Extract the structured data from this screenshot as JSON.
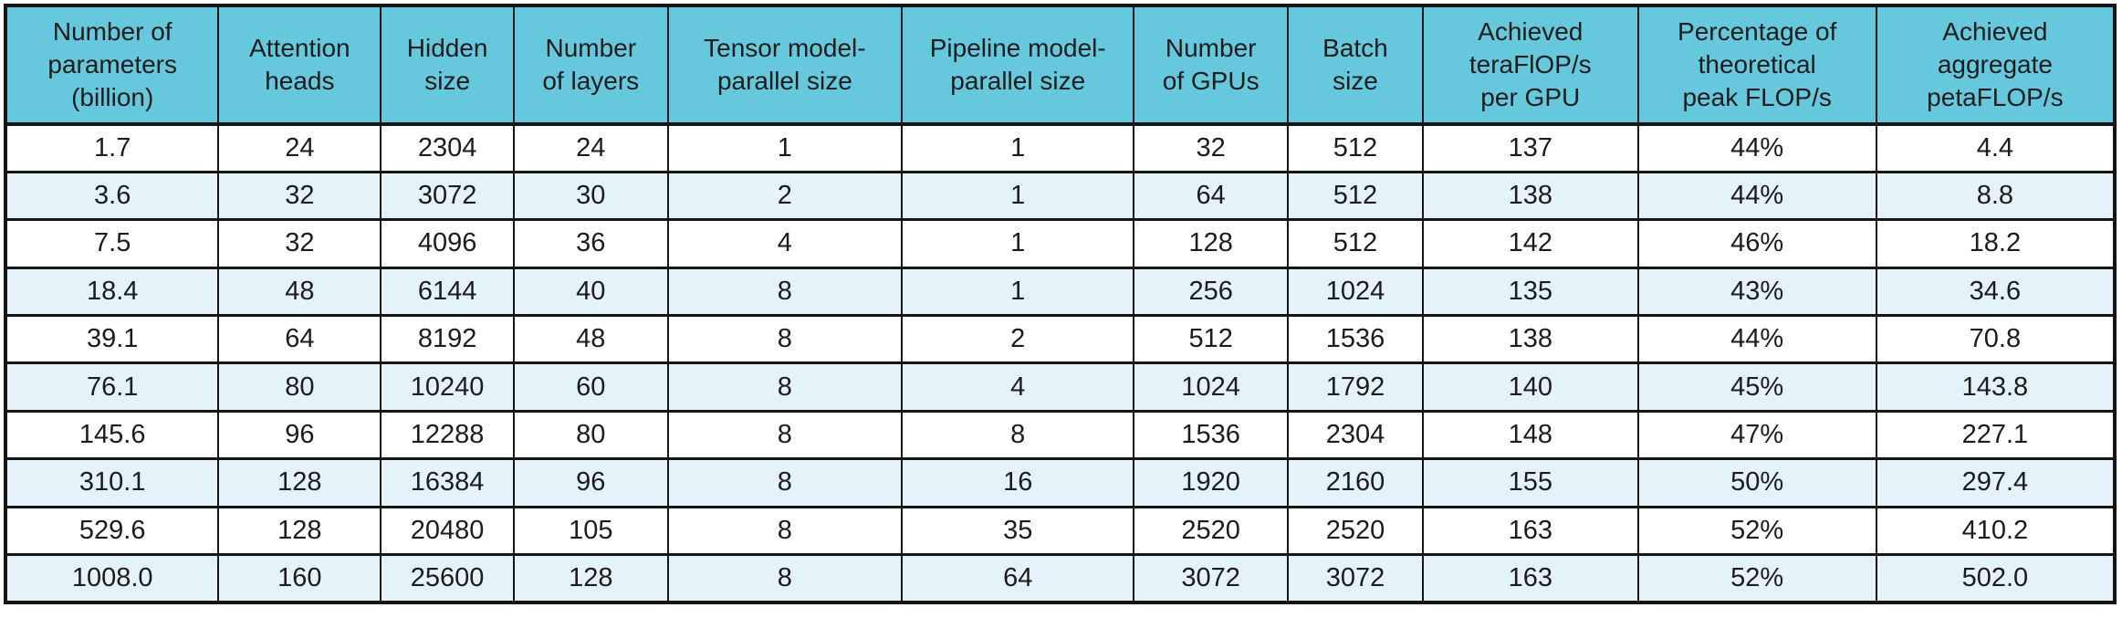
{
  "chart_data": {
    "type": "table",
    "columns": [
      "Number of\nparameters\n(billion)",
      "Attention\nheads",
      "Hidden\nsize",
      "Number\nof layers",
      "Tensor model-\nparallel size",
      "Pipeline model-\nparallel size",
      "Number\nof GPUs",
      "Batch\nsize",
      "Achieved\nteraFlOP/s\nper GPU",
      "Percentage of\ntheoretical\npeak FLOP/s",
      "Achieved\naggregate\npetaFLOP/s"
    ],
    "rows": [
      [
        "1.7",
        "24",
        "2304",
        "24",
        "1",
        "1",
        "32",
        "512",
        "137",
        "44%",
        "4.4"
      ],
      [
        "3.6",
        "32",
        "3072",
        "30",
        "2",
        "1",
        "64",
        "512",
        "138",
        "44%",
        "8.8"
      ],
      [
        "7.5",
        "32",
        "4096",
        "36",
        "4",
        "1",
        "128",
        "512",
        "142",
        "46%",
        "18.2"
      ],
      [
        "18.4",
        "48",
        "6144",
        "40",
        "8",
        "1",
        "256",
        "1024",
        "135",
        "43%",
        "34.6"
      ],
      [
        "39.1",
        "64",
        "8192",
        "48",
        "8",
        "2",
        "512",
        "1536",
        "138",
        "44%",
        "70.8"
      ],
      [
        "76.1",
        "80",
        "10240",
        "60",
        "8",
        "4",
        "1024",
        "1792",
        "140",
        "45%",
        "143.8"
      ],
      [
        "145.6",
        "96",
        "12288",
        "80",
        "8",
        "8",
        "1536",
        "2304",
        "148",
        "47%",
        "227.1"
      ],
      [
        "310.1",
        "128",
        "16384",
        "96",
        "8",
        "16",
        "1920",
        "2160",
        "155",
        "50%",
        "297.4"
      ],
      [
        "529.6",
        "128",
        "20480",
        "105",
        "8",
        "35",
        "2520",
        "2520",
        "163",
        "52%",
        "410.2"
      ],
      [
        "1008.0",
        "160",
        "25600",
        "128",
        "8",
        "64",
        "3072",
        "3072",
        "163",
        "52%",
        "502.0"
      ]
    ]
  },
  "colors": {
    "header_bg": "#66c8dd",
    "row_bg": "#ffffff",
    "row_alt_bg": "#e4f3f9",
    "border": "#151515"
  }
}
